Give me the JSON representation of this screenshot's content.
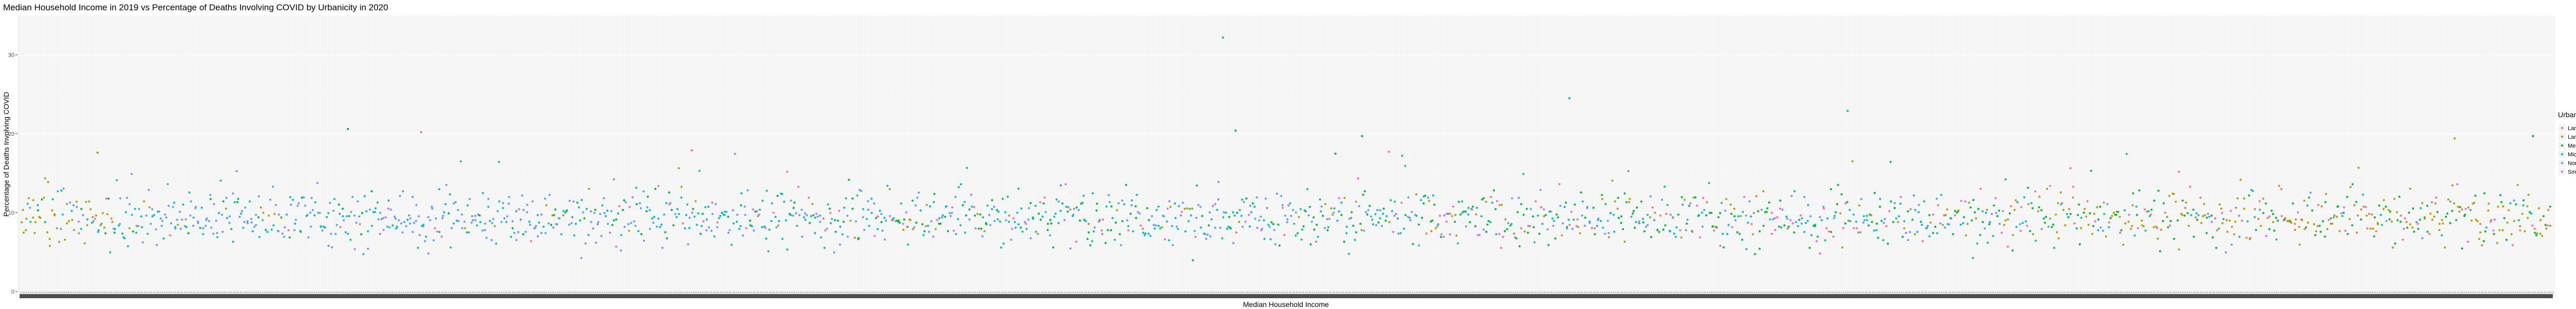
{
  "chart_data": {
    "type": "scatter",
    "title": "Median Household Income in 2019 vs Percentage of Deaths Involving COVID by Urbanicity in 2020",
    "xlabel": "Median Household Income",
    "ylabel": "Percentage of Deaths Involving COVID",
    "ylim": [
      0,
      35
    ],
    "yticks": [
      0,
      10,
      20,
      30
    ],
    "grid": true,
    "legend": {
      "title": "Urbanicity",
      "placement": "right",
      "entries": [
        {
          "name": "Large central metro",
          "color": "#F8766D"
        },
        {
          "name": "Large fringe metro",
          "color": "#B79F00"
        },
        {
          "name": "Medium metro",
          "color": "#00BA38"
        },
        {
          "name": "Micropolitan",
          "color": "#00BFC4"
        },
        {
          "name": "Noncore",
          "color": "#619CFF"
        },
        {
          "name": "Small metro",
          "color": "#F564E3"
        }
      ]
    },
    "x_axis_note": "income values treated as discrete categories; tick labels overplotted and illegible",
    "sample_points": [
      {
        "x_index": 0.475,
        "y": 32.2,
        "group": "Micropolitan"
      },
      {
        "x_index": 0.612,
        "y": 24.5,
        "group": "Micropolitan"
      },
      {
        "x_index": 0.722,
        "y": 22.9,
        "group": "Micropolitan"
      },
      {
        "x_index": 0.129,
        "y": 20.6,
        "group": "Medium metro"
      },
      {
        "x_index": 0.158,
        "y": 20.2,
        "group": "Small metro"
      },
      {
        "x_index": 0.993,
        "y": 19.7,
        "group": "Medium metro"
      },
      {
        "x_index": 0.48,
        "y": 20.4,
        "group": "Medium metro"
      },
      {
        "x_index": 0.53,
        "y": 19.7,
        "group": "Medium metro"
      },
      {
        "x_index": 0.03,
        "y": 17.6,
        "group": "Large fringe metro"
      },
      {
        "x_index": 0.265,
        "y": 17.9,
        "group": "Small metro"
      },
      {
        "x_index": 0.962,
        "y": 19.4,
        "group": "Large fringe metro"
      }
    ]
  }
}
